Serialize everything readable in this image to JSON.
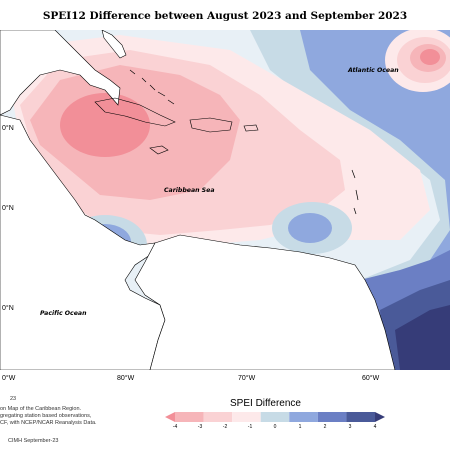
{
  "title": "SPEI12 Difference between August 2023 and September 2023",
  "labels": {
    "atlantic": "Atlantic Ocean",
    "caribbean": "Caribbean Sea",
    "pacific": "Pacific Ocean"
  },
  "longitudes": [
    "0°W",
    "80°W",
    "70°W",
    "60°W"
  ],
  "latitudes": [
    "0°N",
    "0°N",
    "0°N"
  ],
  "notes": {
    "number": "23",
    "line1": "on Map of the Caribbean Region.",
    "line2": "gregating station based observations,",
    "line3": "CF, with NCEP/NCAR Reanalysis Data.",
    "credit": "CIMH September-23"
  },
  "legend": {
    "title": "SPEI Difference",
    "ticks": [
      "-4",
      "-3",
      "-2",
      "-1",
      "0",
      "1",
      "2",
      "3",
      "4"
    ],
    "colors": [
      "#f28f98",
      "#f6b5b9",
      "#fad2d4",
      "#fde9ea",
      "#c7dbe6",
      "#8fa8de",
      "#6b7fc4",
      "#4a5a99",
      "#363c78"
    ]
  }
}
